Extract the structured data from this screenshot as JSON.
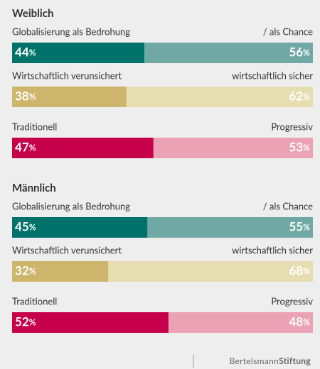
{
  "chart_data": [
    {
      "type": "bar",
      "stacked": true,
      "title": "Weiblich",
      "xlim": [
        0,
        100
      ],
      "rows": [
        {
          "left_label": "Globalisierung als Bedrohung",
          "right_label": "/ als Chance",
          "values": [
            44,
            56
          ],
          "value_labels": [
            "44%",
            "56%"
          ],
          "colors": [
            "#00726a",
            "#6fa8a4"
          ]
        },
        {
          "left_label": "Wirtschaftlich verunsichert",
          "right_label": "wirtschaftlich sicher",
          "values": [
            38,
            62
          ],
          "value_labels": [
            "38%",
            "62%"
          ],
          "colors": [
            "#cdb56c",
            "#e6ddb0"
          ]
        },
        {
          "left_label": "Traditionell",
          "right_label": "Progressiv",
          "values": [
            47,
            53
          ],
          "value_labels": [
            "47%",
            "53%"
          ],
          "colors": [
            "#c6004b",
            "#eca2b5"
          ]
        }
      ]
    },
    {
      "type": "bar",
      "stacked": true,
      "title": "Männlich",
      "xlim": [
        0,
        100
      ],
      "rows": [
        {
          "left_label": "Globalisierung als Bedrohung",
          "right_label": "/ als Chance",
          "values": [
            45,
            55
          ],
          "value_labels": [
            "45%",
            "55%"
          ],
          "colors": [
            "#00726a",
            "#6fa8a4"
          ]
        },
        {
          "left_label": "Wirtschaftlich verunsichert",
          "right_label": "wirtschaftlich sicher",
          "values": [
            32,
            68
          ],
          "value_labels": [
            "32%",
            "68%"
          ],
          "colors": [
            "#cdb56c",
            "#e6ddb0"
          ]
        },
        {
          "left_label": "Traditionell",
          "right_label": "Progressiv",
          "values": [
            52,
            48
          ],
          "value_labels": [
            "52%",
            "48%"
          ],
          "colors": [
            "#c6004b",
            "#eca2b5"
          ]
        }
      ]
    }
  ],
  "footer": {
    "brand_light": "Bertelsmann",
    "brand_bold": "Stiftung"
  }
}
